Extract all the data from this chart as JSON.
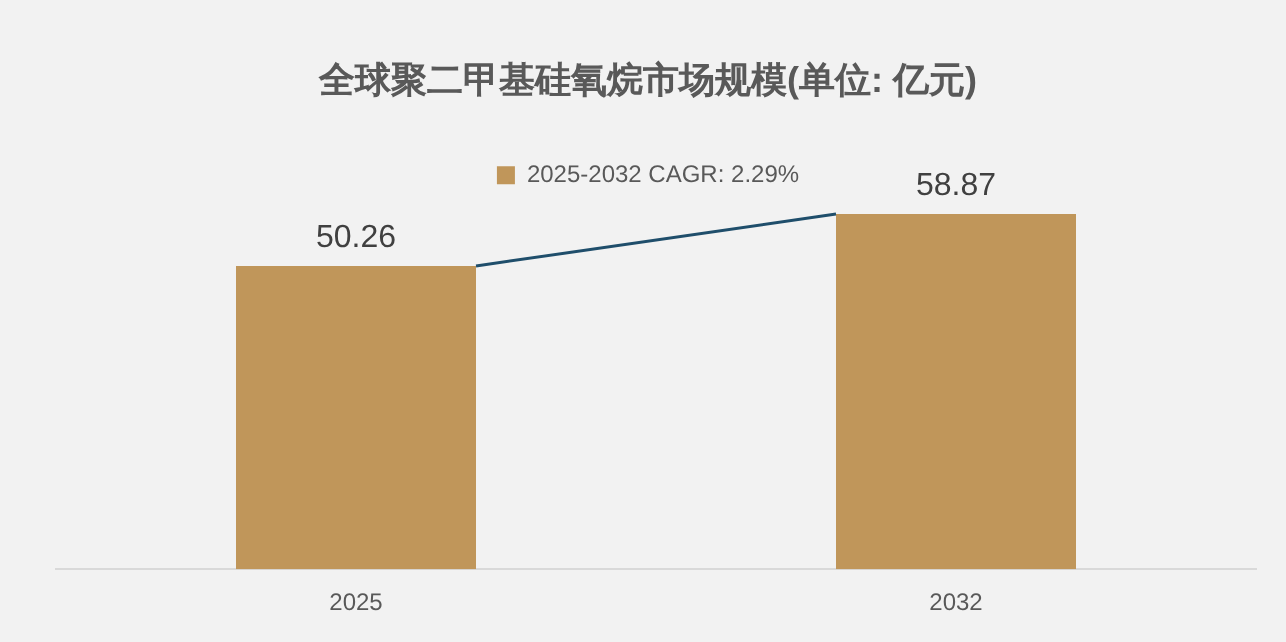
{
  "chart_data": {
    "type": "bar",
    "title": "全球聚二甲基硅氧烷市场规模(单位: 亿元)",
    "categories": [
      "2025",
      "2032"
    ],
    "series": [
      {
        "name": "2025-2032 CAGR: 2.29%",
        "color": "#c0965a",
        "values": [
          50.26,
          58.87
        ]
      }
    ],
    "tick_labels": "x",
    "grid": false,
    "legend": "top",
    "data_labels": true
  }
}
